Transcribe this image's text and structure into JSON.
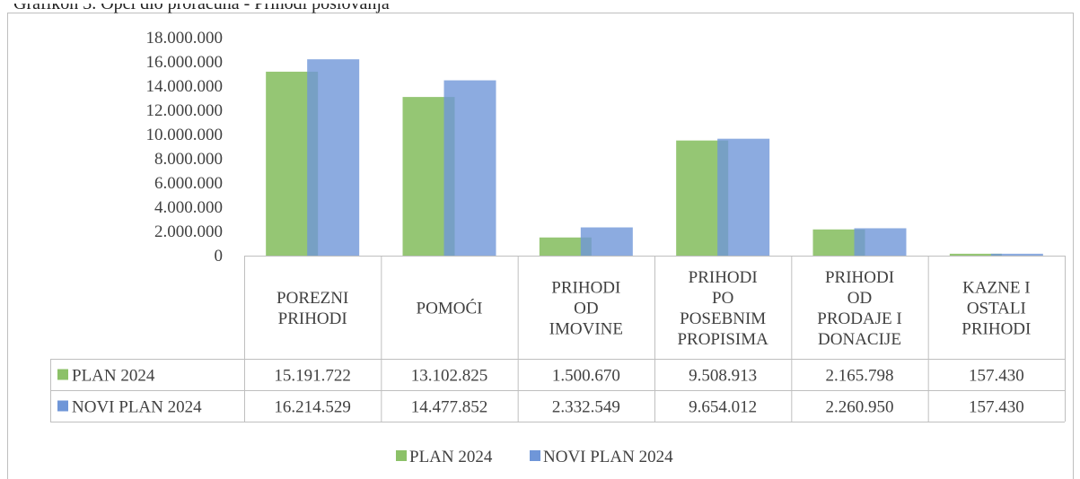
{
  "caption": "Grafikon 3. Opći dio proračuna - Prihodi poslovanja",
  "chart_data": {
    "type": "bar",
    "title": "",
    "xlabel": "",
    "ylabel": "",
    "ylim": [
      0,
      18000000
    ],
    "yticks": [
      0,
      2000000,
      4000000,
      6000000,
      8000000,
      10000000,
      12000000,
      14000000,
      16000000,
      18000000
    ],
    "ytick_labels": [
      "0",
      "2.000.000",
      "4.000.000",
      "6.000.000",
      "8.000.000",
      "10.000.000",
      "12.000.000",
      "14.000.000",
      "16.000.000",
      "18.000.000"
    ],
    "categories": [
      [
        "POREZNI",
        "PRIHODI"
      ],
      [
        "POMOĆI"
      ],
      [
        "PRIHODI",
        "OD",
        "IMOVINE"
      ],
      [
        "PRIHODI",
        "PO",
        "POSEBNIM",
        "PROPISIMA"
      ],
      [
        "PRIHODI",
        "OD",
        "PRODAJE I",
        "DONACIJE"
      ],
      [
        "KAZNE I",
        "OSTALI",
        "PRIHODI"
      ]
    ],
    "series": [
      {
        "name": "PLAN 2024",
        "color": "#8cc168",
        "values": [
          15191722,
          13102825,
          1500670,
          9508913,
          2165798,
          157430
        ],
        "labels": [
          "15.191.722",
          "13.102.825",
          "1.500.670",
          "9.508.913",
          "2.165.798",
          "157.430"
        ]
      },
      {
        "name": "NOVI PLAN 2024",
        "color": "#6f96d8",
        "values": [
          16214529,
          14477852,
          2332549,
          9654012,
          2260950,
          157430
        ],
        "labels": [
          "16.214.529",
          "14.477.852",
          "2.332.549",
          "9.654.012",
          "2.260.950",
          "157.430"
        ]
      }
    ],
    "grid": false,
    "legend": "bottom",
    "data_table": true
  }
}
